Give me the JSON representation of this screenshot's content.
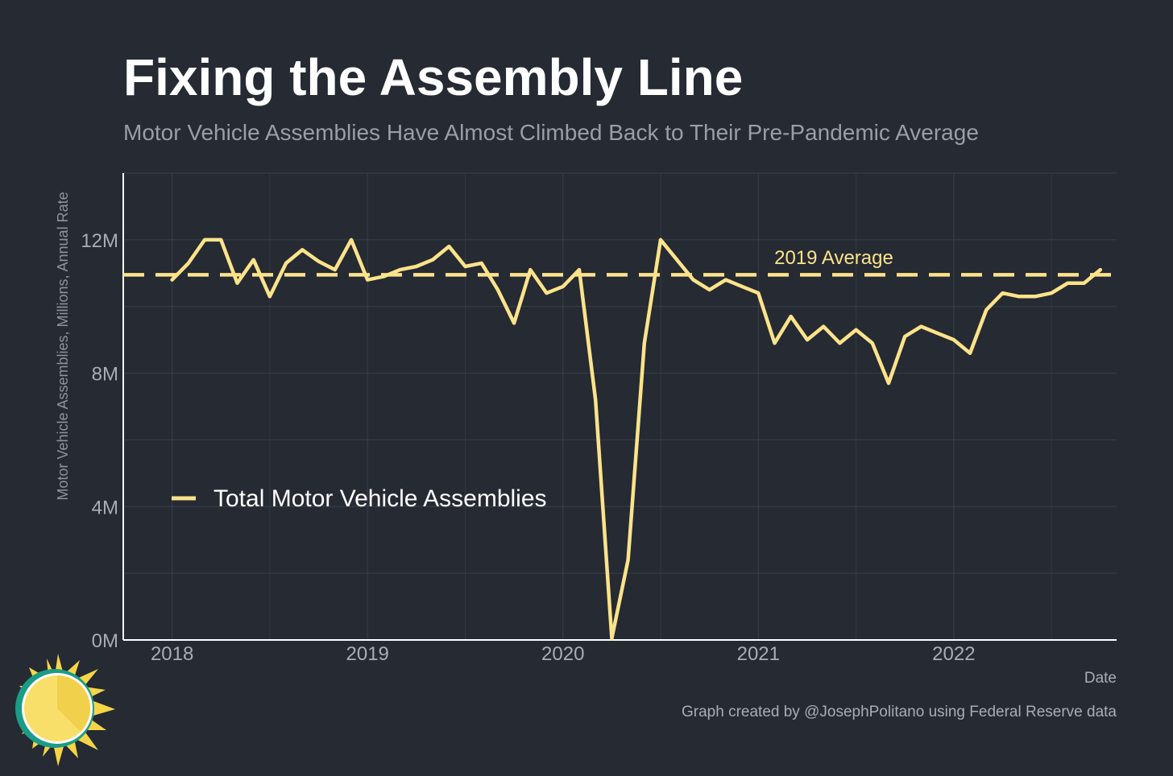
{
  "chart_data": {
    "type": "line",
    "title": "Fixing the Assembly Line",
    "subtitle": "Motor Vehicle Assemblies Have Almost Climbed Back to Their Pre-Pandemic Average",
    "xlabel": "Date",
    "ylabel": "Motor Vehicle Assemblies, Millions, Annual Rate",
    "caption": "Graph created by @JosephPolitano using Federal Reserve data",
    "x_tick_labels": [
      "2018",
      "2019",
      "2020",
      "2021",
      "2022"
    ],
    "y_tick_labels": [
      "0M",
      "4M",
      "8M",
      "12M"
    ],
    "y_tick_values": [
      0,
      4,
      8,
      12
    ],
    "x_range": [
      "2017-10",
      "2022-11"
    ],
    "ylim": [
      0,
      14
    ],
    "grid": true,
    "legend_position": "left",
    "series": [
      {
        "name": "Total Motor Vehicle Assemblies",
        "color": "#fce38a",
        "x": [
          "2018-01",
          "2018-02",
          "2018-03",
          "2018-04",
          "2018-05",
          "2018-06",
          "2018-07",
          "2018-08",
          "2018-09",
          "2018-10",
          "2018-11",
          "2018-12",
          "2019-01",
          "2019-02",
          "2019-03",
          "2019-04",
          "2019-05",
          "2019-06",
          "2019-07",
          "2019-08",
          "2019-09",
          "2019-10",
          "2019-11",
          "2019-12",
          "2020-01",
          "2020-02",
          "2020-03",
          "2020-04",
          "2020-05",
          "2020-06",
          "2020-07",
          "2020-08",
          "2020-09",
          "2020-10",
          "2020-11",
          "2020-12",
          "2021-01",
          "2021-02",
          "2021-03",
          "2021-04",
          "2021-05",
          "2021-06",
          "2021-07",
          "2021-08",
          "2021-09",
          "2021-10",
          "2021-11",
          "2021-12",
          "2022-01",
          "2022-02",
          "2022-03",
          "2022-04",
          "2022-05",
          "2022-06",
          "2022-07",
          "2022-08",
          "2022-09",
          "2022-10"
        ],
        "values": [
          10.8,
          11.3,
          12.0,
          12.0,
          10.7,
          11.4,
          10.3,
          11.3,
          11.7,
          11.35,
          11.1,
          12.0,
          10.8,
          10.9,
          11.1,
          11.2,
          11.4,
          11.8,
          11.2,
          11.3,
          10.5,
          9.5,
          11.1,
          10.4,
          10.6,
          11.1,
          7.2,
          0.05,
          2.4,
          8.9,
          12.0,
          11.4,
          10.8,
          10.5,
          10.8,
          10.6,
          10.4,
          8.9,
          9.7,
          9.0,
          9.4,
          8.9,
          9.3,
          8.9,
          7.7,
          9.1,
          9.4,
          9.2,
          9.0,
          8.6,
          9.9,
          10.4,
          10.3,
          10.3,
          10.4,
          10.7,
          10.7,
          11.1
        ]
      }
    ],
    "reference_line": {
      "label": "2019 Average",
      "value": 10.95,
      "style": "dashed",
      "color": "#fce38a"
    }
  }
}
